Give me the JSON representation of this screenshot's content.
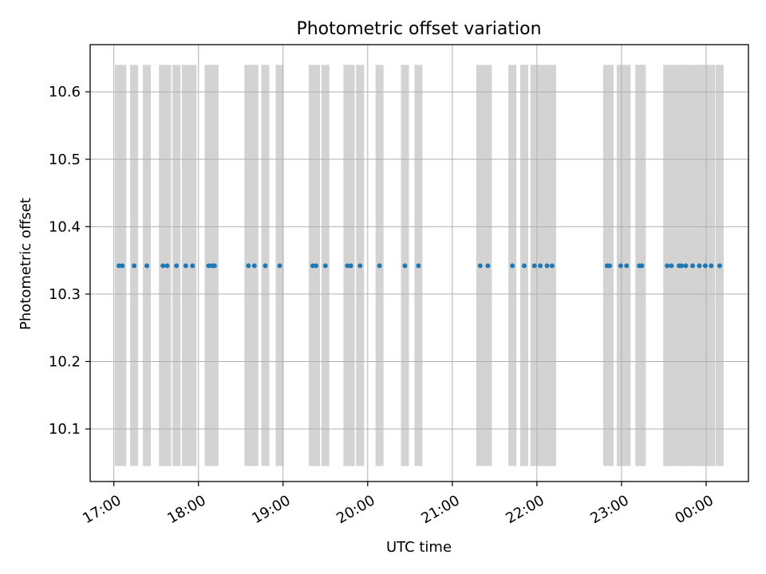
{
  "chart_data": {
    "type": "scatter",
    "title": "Photometric offset variation",
    "xlabel": "UTC time",
    "ylabel": "Photometric offset",
    "x_axis": {
      "kind": "time",
      "range_hours": [
        16.72,
        24.5
      ],
      "ticks": [
        {
          "value": 17,
          "label": "17:00"
        },
        {
          "value": 18,
          "label": "18:00"
        },
        {
          "value": 19,
          "label": "19:00"
        },
        {
          "value": 20,
          "label": "20:00"
        },
        {
          "value": 21,
          "label": "21:00"
        },
        {
          "value": 22,
          "label": "22:00"
        },
        {
          "value": 23,
          "label": "23:00"
        },
        {
          "value": 24,
          "label": "00:00"
        }
      ]
    },
    "y_axis": {
      "range": [
        10.022,
        10.67
      ],
      "ticks": [
        {
          "value": 10.1,
          "label": "10.1"
        },
        {
          "value": 10.2,
          "label": "10.2"
        },
        {
          "value": 10.3,
          "label": "10.3"
        },
        {
          "value": 10.4,
          "label": "10.4"
        },
        {
          "value": 10.5,
          "label": "10.5"
        },
        {
          "value": 10.6,
          "label": "10.6"
        }
      ]
    },
    "grid": true,
    "bands": {
      "color": "#d3d3d3",
      "y_range": [
        10.045,
        10.64
      ],
      "hours": [
        17.06,
        17.1,
        17.24,
        17.39,
        17.58,
        17.63,
        17.74,
        17.85,
        17.93,
        18.12,
        18.16,
        18.19,
        18.59,
        18.66,
        18.79,
        18.96,
        19.35,
        19.39,
        19.5,
        19.76,
        19.8,
        19.91,
        20.14,
        20.44,
        20.6,
        21.33,
        21.42,
        21.71,
        21.85,
        21.97,
        22.04,
        22.12,
        22.18,
        22.83,
        22.86,
        22.99,
        23.06,
        23.21,
        23.24,
        23.54,
        23.59,
        23.68,
        23.71,
        23.76,
        23.84,
        23.92,
        23.99,
        24.06,
        24.16
      ]
    },
    "series": [
      {
        "color": "#1f77b4",
        "x": [
          17.06,
          17.1,
          17.24,
          17.39,
          17.58,
          17.63,
          17.74,
          17.85,
          17.93,
          18.12,
          18.16,
          18.19,
          18.59,
          18.66,
          18.79,
          18.96,
          19.35,
          19.39,
          19.5,
          19.76,
          19.8,
          19.91,
          20.14,
          20.44,
          20.6,
          21.33,
          21.42,
          21.71,
          21.85,
          21.97,
          22.04,
          22.12,
          22.18,
          22.83,
          22.86,
          22.99,
          23.06,
          23.21,
          23.24,
          23.54,
          23.59,
          23.68,
          23.71,
          23.76,
          23.84,
          23.92,
          23.99,
          24.06,
          24.16
        ],
        "y": [
          10.342,
          10.342,
          10.342,
          10.342,
          10.342,
          10.342,
          10.342,
          10.342,
          10.342,
          10.342,
          10.342,
          10.342,
          10.342,
          10.342,
          10.342,
          10.342,
          10.342,
          10.342,
          10.342,
          10.342,
          10.342,
          10.342,
          10.342,
          10.342,
          10.342,
          10.342,
          10.342,
          10.342,
          10.342,
          10.342,
          10.342,
          10.342,
          10.342,
          10.342,
          10.342,
          10.342,
          10.342,
          10.342,
          10.342,
          10.342,
          10.342,
          10.342,
          10.342,
          10.342,
          10.342,
          10.342,
          10.342,
          10.342,
          10.342
        ]
      }
    ]
  }
}
